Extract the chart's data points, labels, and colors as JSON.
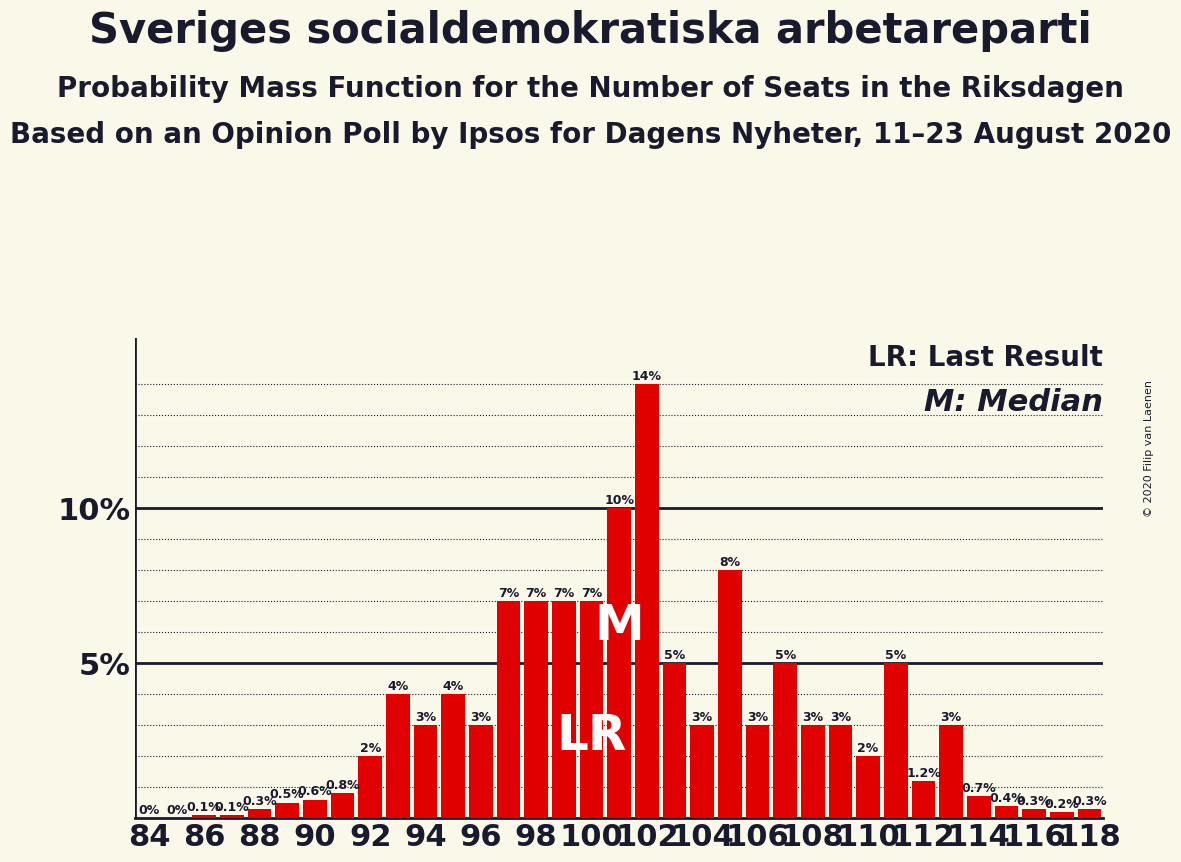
{
  "title": "Sveriges socialdemokratiska arbetareparti",
  "subtitle1": "Probability Mass Function for the Number of Seats in the Riksdagen",
  "subtitle2": "Based on an Opinion Poll by Ipsos for Dagens Nyheter, 11–23 August 2020",
  "copyright": "© 2020 Filip van Laenen",
  "seats": [
    84,
    85,
    86,
    87,
    88,
    89,
    90,
    91,
    92,
    93,
    94,
    95,
    96,
    97,
    98,
    99,
    100,
    101,
    102,
    103,
    104,
    105,
    106,
    107,
    108,
    109,
    110,
    111,
    112,
    113,
    114,
    115,
    116,
    117,
    118
  ],
  "probabilities": [
    0.0,
    0.0,
    0.1,
    0.1,
    0.3,
    0.5,
    0.6,
    0.8,
    2.0,
    4.0,
    3.0,
    4.0,
    3.0,
    7.0,
    7.0,
    7.0,
    7.0,
    10.0,
    14.0,
    5.0,
    3.0,
    8.0,
    3.0,
    5.0,
    3.0,
    3.0,
    2.0,
    5.0,
    1.2,
    3.0,
    0.7,
    0.4,
    0.3,
    0.2,
    0.3
  ],
  "bar_color": "#e00000",
  "background_color": "#faf8e8",
  "text_color": "#1a1a2e",
  "lr_seat": 100,
  "median_seat": 101,
  "lr_label": "LR",
  "median_label": "M",
  "lr_legend": "LR: Last Result",
  "median_legend": "M: Median",
  "solid_hlines": [
    5,
    10
  ],
  "dotted_hlines": [
    1,
    2,
    3,
    4,
    6,
    7,
    8,
    9,
    11,
    12,
    13,
    14
  ],
  "ylim": [
    0,
    15.5
  ],
  "ytick_labels": {
    "5": "5%",
    "10": "10%"
  },
  "title_fontsize": 30,
  "subtitle_fontsize": 20,
  "bar_label_fontsize": 9,
  "annotation_lr_fontsize": 36,
  "annotation_m_fontsize": 36,
  "legend_fontsize": 20,
  "ylabel_fontsize": 22,
  "xlabel_fontsize": 22
}
